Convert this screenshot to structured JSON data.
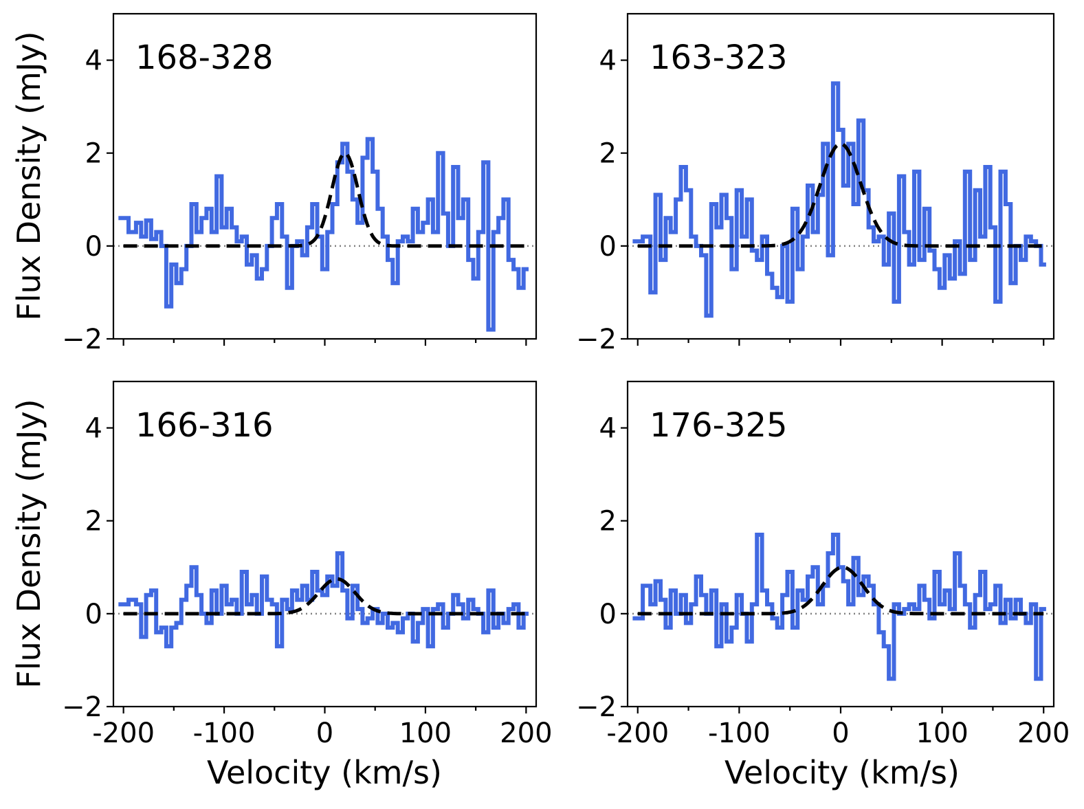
{
  "figure": {
    "ylabel": "Flux Density (mJy)",
    "xlabel": "Velocity (km/s)",
    "colors": {
      "spectrum": "#4169E1",
      "fit": "#000000",
      "zero_line": "#808080"
    }
  },
  "chart_data": [
    {
      "type": "line",
      "title": "168-328",
      "xlabel": "",
      "ylabel": "Flux Density (mJy)",
      "xlim": [
        -210,
        210
      ],
      "ylim": [
        -2,
        5
      ],
      "xticks": [
        -200,
        -100,
        0,
        100,
        200
      ],
      "xticklabels": [
        "",
        "",
        "",
        "",
        ""
      ],
      "yticks": [
        -2,
        0,
        2,
        4
      ],
      "yticklabels": [
        "−2",
        "0",
        "2",
        "4"
      ],
      "series": [
        {
          "name": "spectrum",
          "style": "steps",
          "x": [
            -200,
            -190,
            -185,
            -180,
            -175,
            -170,
            -165,
            -160,
            -155,
            -150,
            -145,
            -140,
            -135,
            -130,
            -125,
            -120,
            -115,
            -110,
            -105,
            -100,
            -95,
            -90,
            -85,
            -80,
            -75,
            -70,
            -65,
            -60,
            -55,
            -50,
            -45,
            -40,
            -35,
            -30,
            -25,
            -20,
            -15,
            -10,
            -5,
            0,
            5,
            10,
            15,
            20,
            25,
            30,
            35,
            40,
            45,
            50,
            55,
            60,
            65,
            70,
            75,
            80,
            85,
            90,
            95,
            100,
            105,
            110,
            115,
            120,
            125,
            130,
            135,
            140,
            145,
            150,
            155,
            160,
            165,
            170,
            175,
            180,
            185,
            190,
            195,
            200
          ],
          "y": [
            0.6,
            0.3,
            0.5,
            0.2,
            0.55,
            0.15,
            0.3,
            0.0,
            -1.3,
            -0.4,
            -0.8,
            -0.5,
            0.0,
            0.9,
            0.3,
            0.6,
            0.8,
            0.3,
            1.5,
            0.4,
            0.8,
            0.4,
            0.1,
            0.2,
            -0.4,
            -0.2,
            -0.7,
            -0.5,
            0.0,
            0.6,
            0.9,
            0.2,
            -0.9,
            0.0,
            0.1,
            -0.2,
            0.4,
            0.9,
            0.2,
            -0.5,
            0.3,
            0.9,
            1.8,
            2.2,
            1.6,
            1.0,
            0.5,
            1.9,
            2.3,
            1.6,
            0.8,
            0.2,
            -0.3,
            -0.8,
            0.1,
            0.2,
            0.1,
            0.8,
            0.3,
            0.5,
            1.0,
            0.3,
            2.0,
            0.7,
            0.0,
            1.7,
            0.6,
            1.0,
            -0.3,
            -0.7,
            0.3,
            1.8,
            -1.8,
            0.3,
            0.6,
            1.0,
            -0.3,
            -0.5,
            -0.9,
            -0.5
          ],
          "color": "#4169E1"
        },
        {
          "name": "gaussian fit",
          "style": "dashed",
          "model": "gaussian",
          "amplitude": 2.0,
          "center": 20,
          "sigma": 13,
          "color": "#000000"
        }
      ]
    },
    {
      "type": "line",
      "title": "163-323",
      "xlabel": "",
      "ylabel": "",
      "xlim": [
        -210,
        210
      ],
      "ylim": [
        -2,
        5
      ],
      "xticks": [
        -200,
        -100,
        0,
        100,
        200
      ],
      "xticklabels": [
        "",
        "",
        "",
        "",
        ""
      ],
      "yticks": [
        -2,
        0,
        2,
        4
      ],
      "yticklabels": [
        "−2",
        "0",
        "2",
        "4"
      ],
      "series": [
        {
          "name": "spectrum",
          "style": "steps",
          "x": [
            -200,
            -190,
            -185,
            -180,
            -175,
            -170,
            -165,
            -160,
            -155,
            -150,
            -145,
            -140,
            -135,
            -130,
            -125,
            -120,
            -115,
            -110,
            -105,
            -100,
            -95,
            -90,
            -85,
            -80,
            -75,
            -70,
            -65,
            -60,
            -55,
            -50,
            -45,
            -40,
            -35,
            -30,
            -25,
            -20,
            -15,
            -10,
            -5,
            0,
            5,
            10,
            15,
            20,
            25,
            30,
            35,
            40,
            45,
            50,
            55,
            60,
            65,
            70,
            75,
            80,
            85,
            90,
            95,
            100,
            105,
            110,
            115,
            120,
            125,
            130,
            135,
            140,
            145,
            150,
            155,
            160,
            165,
            170,
            175,
            180,
            185,
            190,
            195,
            200
          ],
          "y": [
            0.1,
            0.2,
            -1.0,
            1.1,
            -0.3,
            0.6,
            0.3,
            1.0,
            1.7,
            1.2,
            0.2,
            0.0,
            -0.2,
            -1.5,
            0.9,
            0.4,
            1.1,
            0.6,
            -0.5,
            1.2,
            0.2,
            1.0,
            -0.1,
            -0.3,
            0.2,
            -0.6,
            -0.9,
            -1.1,
            0.0,
            -1.2,
            0.8,
            -0.5,
            0.2,
            1.3,
            0.3,
            1.1,
            2.2,
            -0.2,
            3.5,
            2.5,
            1.3,
            2.2,
            0.9,
            2.7,
            1.2,
            0.4,
            0.1,
            0.2,
            -0.4,
            0.7,
            -1.2,
            1.5,
            0.3,
            -0.4,
            1.6,
            -0.3,
            0.8,
            -0.1,
            -0.5,
            -0.9,
            -0.2,
            -0.7,
            0.1,
            -0.6,
            1.6,
            -0.3,
            1.2,
            0.2,
            1.7,
            0.4,
            -1.2,
            1.6,
            0.9,
            -0.8,
            0.0,
            -0.3,
            0.2,
            0.1,
            0.0,
            -0.4
          ],
          "color": "#4169E1"
        },
        {
          "name": "gaussian fit",
          "style": "dashed",
          "model": "gaussian",
          "amplitude": 2.2,
          "center": 0,
          "sigma": 20,
          "color": "#000000"
        }
      ]
    },
    {
      "type": "line",
      "title": "166-316",
      "xlabel": "Velocity (km/s)",
      "ylabel": "Flux Density (mJy)",
      "xlim": [
        -210,
        210
      ],
      "ylim": [
        -2,
        5
      ],
      "xticks": [
        -200,
        -100,
        0,
        100,
        200
      ],
      "xticklabels": [
        "-200",
        "-100",
        "0",
        "100",
        "200"
      ],
      "yticks": [
        -2,
        0,
        2,
        4
      ],
      "yticklabels": [
        "−2",
        "0",
        "2",
        "4"
      ],
      "series": [
        {
          "name": "spectrum",
          "style": "steps",
          "x": [
            -200,
            -190,
            -185,
            -180,
            -175,
            -170,
            -165,
            -160,
            -155,
            -150,
            -145,
            -140,
            -135,
            -130,
            -125,
            -120,
            -115,
            -110,
            -105,
            -100,
            -95,
            -90,
            -85,
            -80,
            -75,
            -70,
            -65,
            -60,
            -55,
            -50,
            -45,
            -40,
            -35,
            -30,
            -25,
            -20,
            -15,
            -10,
            -5,
            0,
            5,
            10,
            15,
            20,
            25,
            30,
            35,
            40,
            45,
            50,
            55,
            60,
            65,
            70,
            75,
            80,
            85,
            90,
            95,
            100,
            105,
            110,
            115,
            120,
            125,
            130,
            135,
            140,
            145,
            150,
            155,
            160,
            165,
            170,
            175,
            180,
            185,
            190,
            195,
            200
          ],
          "y": [
            0.2,
            0.3,
            0.2,
            -0.5,
            0.4,
            0.5,
            -0.4,
            -0.3,
            -0.7,
            -0.3,
            -0.2,
            0.3,
            0.6,
            1.0,
            0.4,
            0.0,
            -0.2,
            0.5,
            0.0,
            0.6,
            0.2,
            0.3,
            0.0,
            0.9,
            0.2,
            0.4,
            0.0,
            0.8,
            0.3,
            0.2,
            -0.7,
            0.3,
            0.1,
            0.5,
            0.3,
            0.6,
            0.3,
            0.9,
            0.5,
            0.4,
            0.8,
            0.6,
            1.3,
            0.5,
            -0.1,
            0.6,
            0.1,
            -0.2,
            -0.1,
            0.1,
            -0.2,
            0.0,
            -0.3,
            -0.2,
            -0.4,
            -0.1,
            0.0,
            -0.6,
            -0.2,
            0.1,
            -0.7,
            0.1,
            0.2,
            -0.3,
            0.0,
            0.4,
            0.2,
            -0.1,
            0.3,
            0.1,
            0.0,
            -0.4,
            0.5,
            -0.3,
            0.0,
            -0.2,
            0.1,
            0.2,
            -0.3,
            0.0
          ],
          "color": "#4169E1"
        },
        {
          "name": "gaussian fit",
          "style": "dashed",
          "model": "gaussian",
          "amplitude": 0.75,
          "center": 12,
          "sigma": 18,
          "color": "#000000"
        }
      ]
    },
    {
      "type": "line",
      "title": "176-325",
      "xlabel": "Velocity (km/s)",
      "ylabel": "",
      "xlim": [
        -210,
        210
      ],
      "ylim": [
        -2,
        5
      ],
      "xticks": [
        -200,
        -100,
        0,
        100,
        200
      ],
      "xticklabels": [
        "-200",
        "-100",
        "0",
        "100",
        "200"
      ],
      "yticks": [
        -2,
        0,
        2,
        4
      ],
      "yticklabels": [
        "−2",
        "0",
        "2",
        "4"
      ],
      "series": [
        {
          "name": "spectrum",
          "style": "steps",
          "x": [
            -200,
            -190,
            -185,
            -180,
            -175,
            -170,
            -165,
            -160,
            -155,
            -150,
            -145,
            -140,
            -135,
            -130,
            -125,
            -120,
            -115,
            -110,
            -105,
            -100,
            -95,
            -90,
            -85,
            -80,
            -75,
            -70,
            -65,
            -60,
            -55,
            -50,
            -45,
            -40,
            -35,
            -30,
            -25,
            -20,
            -15,
            -10,
            -5,
            0,
            5,
            10,
            15,
            20,
            25,
            30,
            35,
            40,
            45,
            50,
            55,
            60,
            65,
            70,
            75,
            80,
            85,
            90,
            95,
            100,
            105,
            110,
            115,
            120,
            125,
            130,
            135,
            140,
            145,
            150,
            155,
            160,
            165,
            170,
            175,
            180,
            185,
            190,
            195,
            200
          ],
          "y": [
            -0.1,
            0.6,
            0.2,
            0.7,
            0.3,
            -0.3,
            0.5,
            0.0,
            0.4,
            -0.2,
            0.2,
            0.8,
            0.4,
            0.0,
            0.5,
            -0.7,
            0.2,
            -0.6,
            -0.3,
            0.4,
            0.0,
            -0.6,
            0.2,
            1.7,
            0.5,
            0.2,
            -0.1,
            -0.3,
            0.4,
            0.9,
            -0.3,
            0.5,
            0.3,
            0.8,
            1.0,
            0.2,
            0.6,
            1.3,
            1.7,
            1.0,
            0.7,
            0.2,
            1.2,
            0.4,
            0.8,
            0.6,
            0.2,
            -0.4,
            -0.7,
            -1.4,
            0.2,
            0.0,
            0.1,
            0.2,
            0.1,
            0.6,
            0.3,
            -0.1,
            0.9,
            0.2,
            0.5,
            0.1,
            1.3,
            0.6,
            0.2,
            -0.3,
            0.4,
            0.9,
            0.1,
            0.2,
            0.6,
            -0.2,
            0.3,
            -0.1,
            0.3,
            0.0,
            -0.2,
            0.2,
            -1.4,
            0.1
          ],
          "color": "#4169E1"
        },
        {
          "name": "gaussian fit",
          "style": "dashed",
          "model": "gaussian",
          "amplitude": 1.0,
          "center": 2,
          "sigma": 20,
          "color": "#000000"
        }
      ]
    }
  ]
}
